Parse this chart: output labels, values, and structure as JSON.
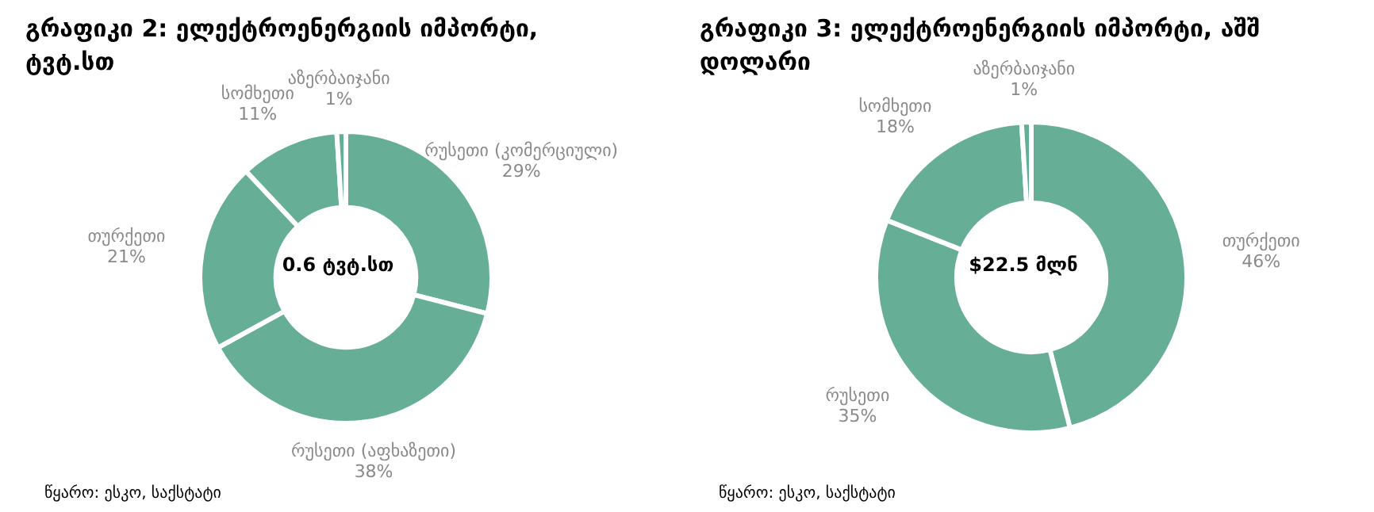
{
  "chart_data": [
    {
      "type": "donut",
      "title": "გრაფიკი 2: ელექტროენერგიის იმპორტი, ტვტ.სთ",
      "categories": [
        "რუსეთი (კომერციული)",
        "რუსეთი (აფხაზეთი)",
        "თურქეთი",
        "სომხეთი",
        "აზერბაიჯანი"
      ],
      "values": [
        29,
        38,
        21,
        11,
        1
      ],
      "value_labels": [
        "29%",
        "38%",
        "21%",
        "11%",
        "1%"
      ],
      "colors": [
        "#66ae96",
        "#66ae96",
        "#66ae96",
        "#66ae96",
        "#66ae96"
      ],
      "annotations": [
        "0.6 ტვტ.სთ",
        "წყარო: ესკო, საქსტატი"
      ],
      "legend": false
    },
    {
      "type": "donut",
      "title": "გრაფიკი 3: ელექტროენერგიის იმპორტი, აშშ დოლარი",
      "categories": [
        "თურქეთი",
        "რუსეთი",
        "სომხეთი",
        "აზერბაიჯანი"
      ],
      "values": [
        46,
        35,
        18,
        1
      ],
      "value_labels": [
        "46%",
        "35%",
        "18%",
        "1%"
      ],
      "colors": [
        "#66ae96",
        "#66ae96",
        "#66ae96",
        "#66ae96"
      ],
      "annotations": [
        "$22.5 მლნ",
        "წყარო: ესკო, საქსტატი"
      ],
      "legend": false
    }
  ]
}
